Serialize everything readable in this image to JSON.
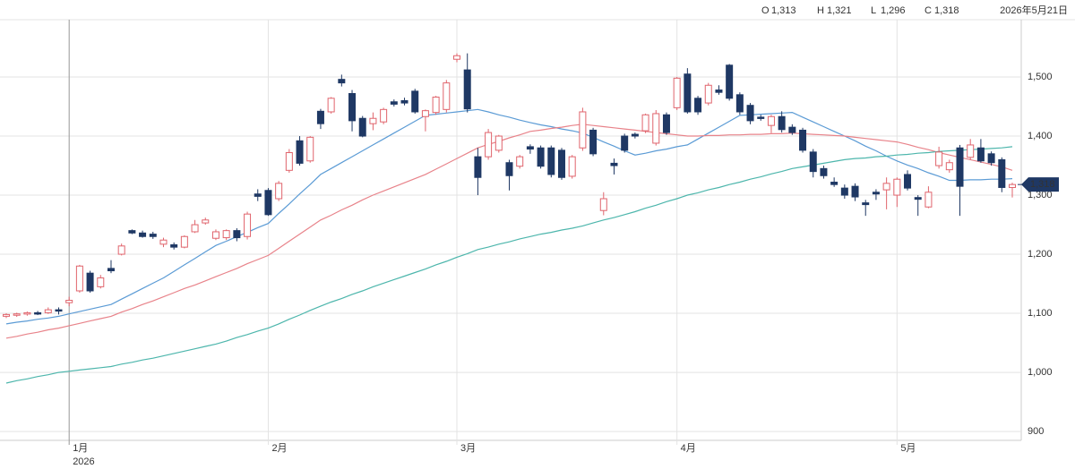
{
  "chart_data": {
    "type": "candlestick",
    "info": {
      "items": [
        {
          "key": "O",
          "value": "1,313"
        },
        {
          "key": "H",
          "value": "1,321"
        },
        {
          "key": "L",
          "value": "1,296"
        },
        {
          "key": "C",
          "value": "1,318"
        }
      ],
      "date": "2026年5月21日"
    },
    "categories": [
      null,
      null,
      null,
      null,
      null,
      null,
      "1月",
      null,
      null,
      null,
      null,
      null,
      null,
      null,
      null,
      null,
      null,
      null,
      null,
      null,
      null,
      null,
      null,
      null,
      null,
      "2月",
      null,
      null,
      null,
      null,
      null,
      null,
      null,
      null,
      null,
      null,
      null,
      null,
      null,
      null,
      null,
      null,
      null,
      "3月",
      null,
      null,
      null,
      null,
      null,
      null,
      null,
      null,
      null,
      null,
      null,
      null,
      null,
      null,
      null,
      null,
      null,
      null,
      null,
      null,
      "4月",
      null,
      null,
      null,
      null,
      null,
      null,
      null,
      null,
      null,
      null,
      null,
      null,
      null,
      null,
      null,
      null,
      null,
      null,
      null,
      null,
      "5月",
      null,
      null,
      null,
      null,
      null,
      null,
      null,
      null,
      null,
      null,
      null
    ],
    "year_label": "2026",
    "open": [
      1095,
      1097,
      1099,
      1101,
      1101,
      1106,
      1118,
      1138,
      1168,
      1145,
      1176,
      1200,
      1240,
      1236,
      1234,
      1217,
      1216,
      1212,
      1238,
      1253,
      1227,
      1228,
      1240,
      1230,
      1302,
      1308,
      1294,
      1342,
      1392,
      1358,
      1442,
      1441,
      1496,
      1472,
      1430,
      1421,
      1424,
      1458,
      1460,
      1476,
      1433,
      1440,
      1445,
      1530,
      1512,
      1365,
      1365,
      1376,
      1355,
      1349,
      1382,
      1380,
      1380,
      1376,
      1332,
      1380,
      1410,
      1274,
      1354,
      1400,
      1403,
      1409,
      1388,
      1436,
      1448,
      1505,
      1464,
      1456,
      1478,
      1520,
      1470,
      1452,
      1432,
      1418,
      1433,
      1415,
      1410,
      1373,
      1345,
      1322,
      1312,
      1315,
      1287,
      1305,
      1309,
      1300,
      1335,
      1296,
      1280,
      1350,
      1343,
      1380,
      1364,
      1380,
      1370,
      1360,
      1313
    ],
    "high": [
      1100,
      1101,
      1103,
      1104,
      1110,
      1110,
      1128,
      1182,
      1172,
      1165,
      1190,
      1218,
      1242,
      1240,
      1238,
      1228,
      1220,
      1232,
      1258,
      1262,
      1242,
      1242,
      1244,
      1272,
      1310,
      1312,
      1324,
      1378,
      1400,
      1400,
      1446,
      1466,
      1504,
      1478,
      1434,
      1440,
      1448,
      1462,
      1465,
      1480,
      1445,
      1468,
      1495,
      1540,
      1540,
      1380,
      1412,
      1402,
      1360,
      1368,
      1386,
      1384,
      1384,
      1380,
      1368,
      1448,
      1414,
      1305,
      1362,
      1404,
      1406,
      1438,
      1444,
      1440,
      1500,
      1515,
      1468,
      1490,
      1486,
      1522,
      1474,
      1456,
      1436,
      1436,
      1442,
      1420,
      1414,
      1378,
      1350,
      1330,
      1318,
      1320,
      1292,
      1310,
      1330,
      1330,
      1342,
      1300,
      1315,
      1382,
      1360,
      1385,
      1395,
      1395,
      1374,
      1364,
      1321
    ],
    "low": [
      1092,
      1094,
      1096,
      1097,
      1099,
      1098,
      1112,
      1135,
      1135,
      1142,
      1168,
      1198,
      1234,
      1228,
      1226,
      1212,
      1208,
      1210,
      1236,
      1250,
      1224,
      1224,
      1222,
      1225,
      1290,
      1265,
      1290,
      1338,
      1350,
      1355,
      1412,
      1438,
      1484,
      1408,
      1398,
      1410,
      1420,
      1450,
      1452,
      1438,
      1408,
      1436,
      1440,
      1525,
      1440,
      1300,
      1360,
      1372,
      1308,
      1345,
      1370,
      1345,
      1330,
      1326,
      1328,
      1375,
      1366,
      1266,
      1335,
      1372,
      1396,
      1405,
      1384,
      1402,
      1444,
      1438,
      1436,
      1452,
      1470,
      1460,
      1436,
      1420,
      1426,
      1405,
      1406,
      1402,
      1372,
      1330,
      1328,
      1314,
      1294,
      1290,
      1265,
      1292,
      1276,
      1280,
      1308,
      1265,
      1278,
      1345,
      1338,
      1265,
      1360,
      1355,
      1350,
      1305,
      1296
    ],
    "close": [
      1098,
      1099,
      1101,
      1100,
      1106,
      1104,
      1122,
      1180,
      1138,
      1160,
      1172,
      1214,
      1236,
      1230,
      1230,
      1224,
      1212,
      1230,
      1250,
      1258,
      1238,
      1240,
      1228,
      1268,
      1298,
      1267,
      1320,
      1372,
      1354,
      1398,
      1421,
      1464,
      1490,
      1426,
      1400,
      1430,
      1445,
      1454,
      1456,
      1441,
      1443,
      1466,
      1490,
      1536,
      1446,
      1330,
      1406,
      1400,
      1333,
      1365,
      1378,
      1349,
      1335,
      1330,
      1365,
      1441,
      1370,
      1294,
      1350,
      1376,
      1400,
      1436,
      1438,
      1406,
      1498,
      1441,
      1441,
      1486,
      1474,
      1464,
      1441,
      1426,
      1430,
      1433,
      1411,
      1406,
      1376,
      1340,
      1333,
      1318,
      1300,
      1297,
      1284,
      1302,
      1320,
      1327,
      1312,
      1293,
      1305,
      1373,
      1355,
      1315,
      1385,
      1358,
      1355,
      1313,
      1318
    ],
    "up_color": "#e0646c",
    "down_color": "#1f3864",
    "lines": [
      {
        "color": "#5b9bd5",
        "values": [
          1082,
          1085,
          1087,
          1090,
          1092,
          1095,
          1099,
          1103,
          1107,
          1111,
          1115,
          1124,
          1133,
          1142,
          1151,
          1160,
          1171,
          1182,
          1193,
          1204,
          1215,
          1222,
          1230,
          1237,
          1245,
          1252,
          1269,
          1285,
          1302,
          1318,
          1335,
          1345,
          1355,
          1365,
          1375,
          1385,
          1395,
          1405,
          1415,
          1425,
          1435,
          1437,
          1439,
          1441,
          1443,
          1445,
          1441,
          1436,
          1432,
          1427,
          1423,
          1419,
          1416,
          1412,
          1409,
          1405,
          1398,
          1390,
          1383,
          1375,
          1368,
          1371,
          1375,
          1378,
          1382,
          1385,
          1395,
          1405,
          1415,
          1425,
          1435,
          1436,
          1437,
          1438,
          1439,
          1440,
          1432,
          1424,
          1416,
          1408,
          1400,
          1392,
          1383,
          1375,
          1366,
          1358,
          1351,
          1345,
          1338,
          1332,
          1325,
          1325,
          1326,
          1326,
          1327,
          1327,
          1328
        ]
      },
      {
        "color": "#e8838a",
        "values": [
          1058,
          1061,
          1065,
          1068,
          1072,
          1075,
          1079,
          1083,
          1087,
          1091,
          1095,
          1102,
          1108,
          1115,
          1121,
          1128,
          1135,
          1142,
          1148,
          1155,
          1162,
          1169,
          1176,
          1184,
          1191,
          1198,
          1210,
          1222,
          1234,
          1246,
          1258,
          1266,
          1275,
          1283,
          1292,
          1300,
          1307,
          1314,
          1321,
          1328,
          1335,
          1344,
          1353,
          1362,
          1371,
          1380,
          1386,
          1391,
          1397,
          1402,
          1408,
          1410,
          1413,
          1415,
          1418,
          1420,
          1418,
          1416,
          1414,
          1412,
          1410,
          1408,
          1406,
          1404,
          1402,
          1400,
          1400,
          1401,
          1401,
          1402,
          1402,
          1403,
          1403,
          1404,
          1404,
          1405,
          1404,
          1403,
          1402,
          1401,
          1400,
          1398,
          1396,
          1394,
          1392,
          1390,
          1386,
          1381,
          1377,
          1372,
          1368,
          1364,
          1360,
          1356,
          1352,
          1348,
          1342
        ]
      },
      {
        "color": "#4db6ac",
        "values": [
          982,
          986,
          989,
          993,
          996,
          1000,
          1002,
          1004,
          1006,
          1008,
          1010,
          1014,
          1017,
          1021,
          1024,
          1028,
          1032,
          1036,
          1040,
          1044,
          1048,
          1053,
          1059,
          1064,
          1070,
          1075,
          1082,
          1090,
          1097,
          1105,
          1112,
          1119,
          1125,
          1132,
          1138,
          1145,
          1151,
          1157,
          1163,
          1169,
          1175,
          1182,
          1188,
          1195,
          1201,
          1208,
          1212,
          1217,
          1221,
          1226,
          1230,
          1234,
          1237,
          1241,
          1244,
          1248,
          1253,
          1258,
          1262,
          1267,
          1272,
          1278,
          1283,
          1289,
          1294,
          1300,
          1304,
          1309,
          1313,
          1318,
          1322,
          1327,
          1331,
          1336,
          1340,
          1345,
          1348,
          1351,
          1354,
          1357,
          1360,
          1362,
          1363,
          1365,
          1366,
          1368,
          1369,
          1371,
          1372,
          1374,
          1375,
          1376,
          1377,
          1378,
          1379,
          1380,
          1382
        ]
      }
    ],
    "last_price": {
      "value": 1318,
      "label": "1,318"
    },
    "last_price_color": "#1f3864",
    "ylim": [
      888,
      1597
    ],
    "yticks": [
      900,
      {
        "value": 1000,
        "label": "1,000"
      },
      {
        "value": 1100,
        "label": "1,100"
      },
      {
        "value": 1200,
        "label": "1,200"
      },
      {
        "value": 1300,
        "label": "1,300"
      },
      {
        "value": 1400,
        "label": "1,400"
      },
      {
        "value": 1500,
        "label": "1,500"
      }
    ],
    "grid": true
  }
}
